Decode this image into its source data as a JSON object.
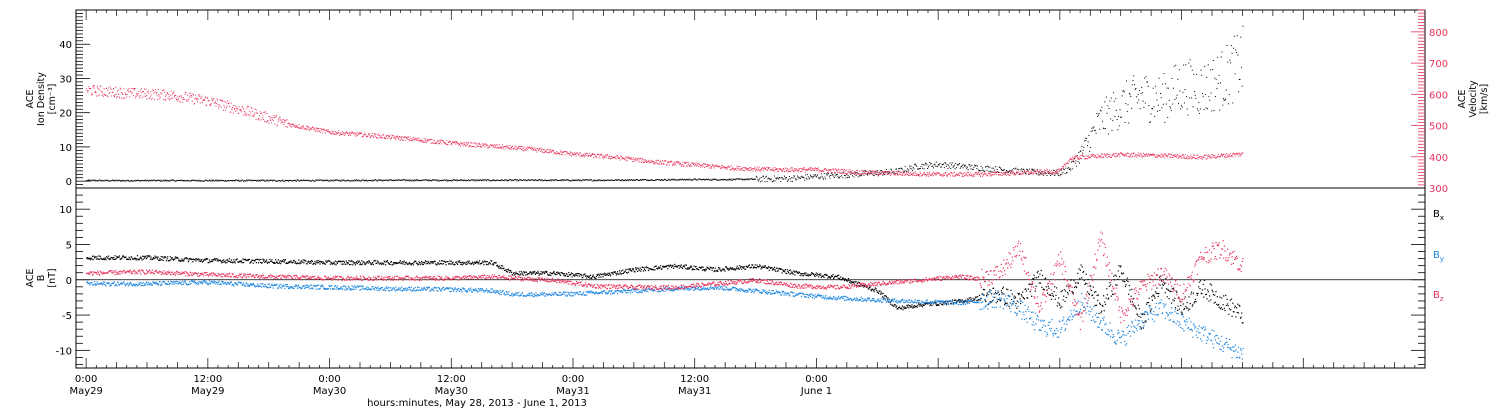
{
  "chart_data": [
    {
      "type": "scatter",
      "panel": "plasma",
      "ylabel_left": [
        "ACE",
        "Ion Density",
        "[cm⁻³]"
      ],
      "ylabel_right": [
        "ACE",
        "Velocity",
        "[km/s]"
      ],
      "y_left_range": [
        -2,
        50
      ],
      "y_left_ticks": [
        0,
        10,
        20,
        30,
        40
      ],
      "y_right_range": [
        300,
        870
      ],
      "y_right_ticks": [
        300,
        400,
        500,
        600,
        700,
        800
      ],
      "series": [
        {
          "name": "density",
          "axis": "left",
          "color": "#000000",
          "x_hours": [
            0,
            10,
            20,
            30,
            40,
            50,
            60,
            63,
            68,
            70,
            72,
            75,
            78,
            80,
            82,
            84,
            86,
            88,
            90,
            92,
            93,
            94,
            95,
            96,
            97,
            98,
            100,
            102,
            104,
            106,
            108,
            110,
            112,
            114
          ],
          "y": [
            0.3,
            0.3,
            0.3,
            0.4,
            0.4,
            0.4,
            0.6,
            0.6,
            0.8,
            1.0,
            1.5,
            2.0,
            2.5,
            3.0,
            4.5,
            5.0,
            4.5,
            4.0,
            3.5,
            3.0,
            2.8,
            2.6,
            2.5,
            2.5,
            4.0,
            8.0,
            18.0,
            22.0,
            25.0,
            24.0,
            28.0,
            27.0,
            30.0,
            35.0
          ]
        },
        {
          "name": "velocity",
          "axis": "right",
          "color": "#e8335e",
          "x_hours": [
            0,
            4,
            8,
            12,
            16,
            20,
            24,
            28,
            32,
            36,
            40,
            44,
            48,
            52,
            56,
            60,
            64,
            68,
            72,
            76,
            80,
            84,
            88,
            92,
            96,
            97,
            98,
            102,
            106,
            110,
            114
          ],
          "y": [
            615,
            605,
            600,
            580,
            545,
            505,
            480,
            470,
            458,
            445,
            435,
            425,
            410,
            400,
            385,
            375,
            365,
            360,
            360,
            352,
            348,
            345,
            345,
            350,
            355,
            395,
            400,
            408,
            405,
            400,
            410
          ]
        }
      ]
    },
    {
      "type": "scatter",
      "panel": "magnetic_field",
      "ylabel_left": [
        "ACE",
        "B",
        "[nT]"
      ],
      "y_range": [
        -12.5,
        13
      ],
      "y_ticks": [
        -10,
        -5,
        0,
        5,
        10
      ],
      "legend": [
        {
          "label": "B",
          "sub": "x",
          "color": "#000000"
        },
        {
          "label": "B",
          "sub": "y",
          "color": "#1d86e0"
        },
        {
          "label": "B",
          "sub": "z",
          "color": "#e8335e"
        }
      ],
      "series": [
        {
          "name": "Bx",
          "color": "#000000",
          "x_hours": [
            0,
            6,
            12,
            18,
            24,
            30,
            36,
            40,
            42,
            46,
            50,
            54,
            58,
            62,
            66,
            70,
            74,
            78,
            80,
            82,
            86,
            88,
            90,
            92,
            94,
            96,
            98,
            100,
            102,
            104,
            106,
            108,
            110,
            112,
            114
          ],
          "y": [
            3.2,
            3.2,
            2.8,
            2.7,
            2.5,
            2.5,
            2.5,
            2.5,
            1.0,
            1.0,
            0.5,
            1.5,
            2.0,
            1.5,
            2.0,
            1.0,
            0.5,
            -1.5,
            -4.0,
            -3.5,
            -3.0,
            -2.5,
            -2.0,
            -3.0,
            0.5,
            -3.0,
            1.0,
            -4.0,
            1.5,
            -6.0,
            0.0,
            -4.0,
            -1.0,
            -3.0,
            -5.0
          ]
        },
        {
          "name": "By",
          "color": "#1d86e0",
          "x_hours": [
            0,
            6,
            12,
            18,
            24,
            30,
            36,
            40,
            42,
            46,
            50,
            54,
            58,
            62,
            66,
            70,
            74,
            78,
            82,
            86,
            88,
            90,
            92,
            94,
            96,
            98,
            100,
            102,
            104,
            106,
            108,
            110,
            112,
            114
          ],
          "y": [
            -0.5,
            -0.5,
            -0.3,
            -0.8,
            -1.0,
            -1.2,
            -1.3,
            -1.5,
            -2.0,
            -2.0,
            -1.8,
            -1.5,
            -1.2,
            -1.0,
            -1.5,
            -2.0,
            -2.5,
            -2.8,
            -3.0,
            -3.2,
            -3.0,
            -2.5,
            -4.0,
            -6.5,
            -7.0,
            -3.0,
            -6.0,
            -8.5,
            -5.5,
            -4.0,
            -6.0,
            -7.5,
            -9.0,
            -10.5
          ]
        },
        {
          "name": "Bz",
          "color": "#e8335e",
          "x_hours": [
            0,
            6,
            12,
            18,
            24,
            30,
            36,
            40,
            42,
            46,
            50,
            54,
            58,
            62,
            66,
            70,
            74,
            78,
            82,
            86,
            88,
            90,
            92,
            94,
            96,
            98,
            100,
            102,
            104,
            106,
            108,
            110,
            112,
            114
          ],
          "y": [
            1.0,
            1.2,
            0.8,
            0.5,
            0.3,
            0.3,
            0.3,
            0.5,
            0.3,
            0.0,
            -0.8,
            -1.0,
            -1.0,
            -0.5,
            0.0,
            -0.8,
            -1.0,
            -0.5,
            0.0,
            0.5,
            0.2,
            1.0,
            4.5,
            -4.0,
            3.0,
            -6.0,
            6.0,
            -5.0,
            -1.0,
            1.0,
            -2.0,
            3.5,
            4.5,
            2.0
          ]
        }
      ]
    }
  ],
  "x_axis": {
    "label": "hours:minutes, May 28, 2013 - June  1, 2013",
    "range_hours": [
      -1,
      132
    ],
    "ticks": [
      {
        "hour": 0,
        "time": "0:00",
        "date": "May29"
      },
      {
        "hour": 12,
        "time": "12:00",
        "date": "May29"
      },
      {
        "hour": 24,
        "time": "0:00",
        "date": "May30"
      },
      {
        "hour": 36,
        "time": "12:00",
        "date": "May30"
      },
      {
        "hour": 48,
        "time": "0:00",
        "date": "May31"
      },
      {
        "hour": 60,
        "time": "12:00",
        "date": "May31"
      },
      {
        "hour": 72,
        "time": "0:00",
        "date": "June 1"
      }
    ]
  }
}
